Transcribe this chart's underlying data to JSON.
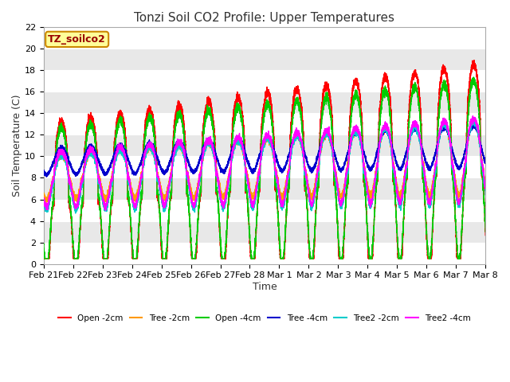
{
  "title": "Tonzi Soil CO2 Profile: Upper Temperatures",
  "xlabel": "Time",
  "ylabel": "Soil Temperature (C)",
  "ylim": [
    0,
    22
  ],
  "xlim": [
    0,
    15
  ],
  "background_color": "#ffffff",
  "plot_bg_color": "#e8e8e8",
  "plot_bg_alt": "#d8d8d8",
  "grid_color": "#ffffff",
  "annotation_text": "TZ_soilco2",
  "annotation_bg": "#ffff99",
  "annotation_border": "#cc8800",
  "annotation_text_color": "#990000",
  "xtick_labels": [
    "Feb 21",
    "Feb 22",
    "Feb 23",
    "Feb 24",
    "Feb 25",
    "Feb 26",
    "Feb 27",
    "Feb 28",
    "Mar 1",
    "Mar 2",
    "Mar 3",
    "Mar 4",
    "Mar 5",
    "Mar 6",
    "Mar 7",
    "Mar 8"
  ],
  "series_colors": [
    "#ff0000",
    "#ff9900",
    "#00cc00",
    "#0000cc",
    "#00cccc",
    "#ff00ff"
  ],
  "series_labels": [
    "Open -2cm",
    "Tree -2cm",
    "Open -4cm",
    "Tree -4cm",
    "Tree2 -2cm",
    "Tree2 -4cm"
  ],
  "title_fontsize": 11,
  "axis_fontsize": 9,
  "tick_fontsize": 8
}
